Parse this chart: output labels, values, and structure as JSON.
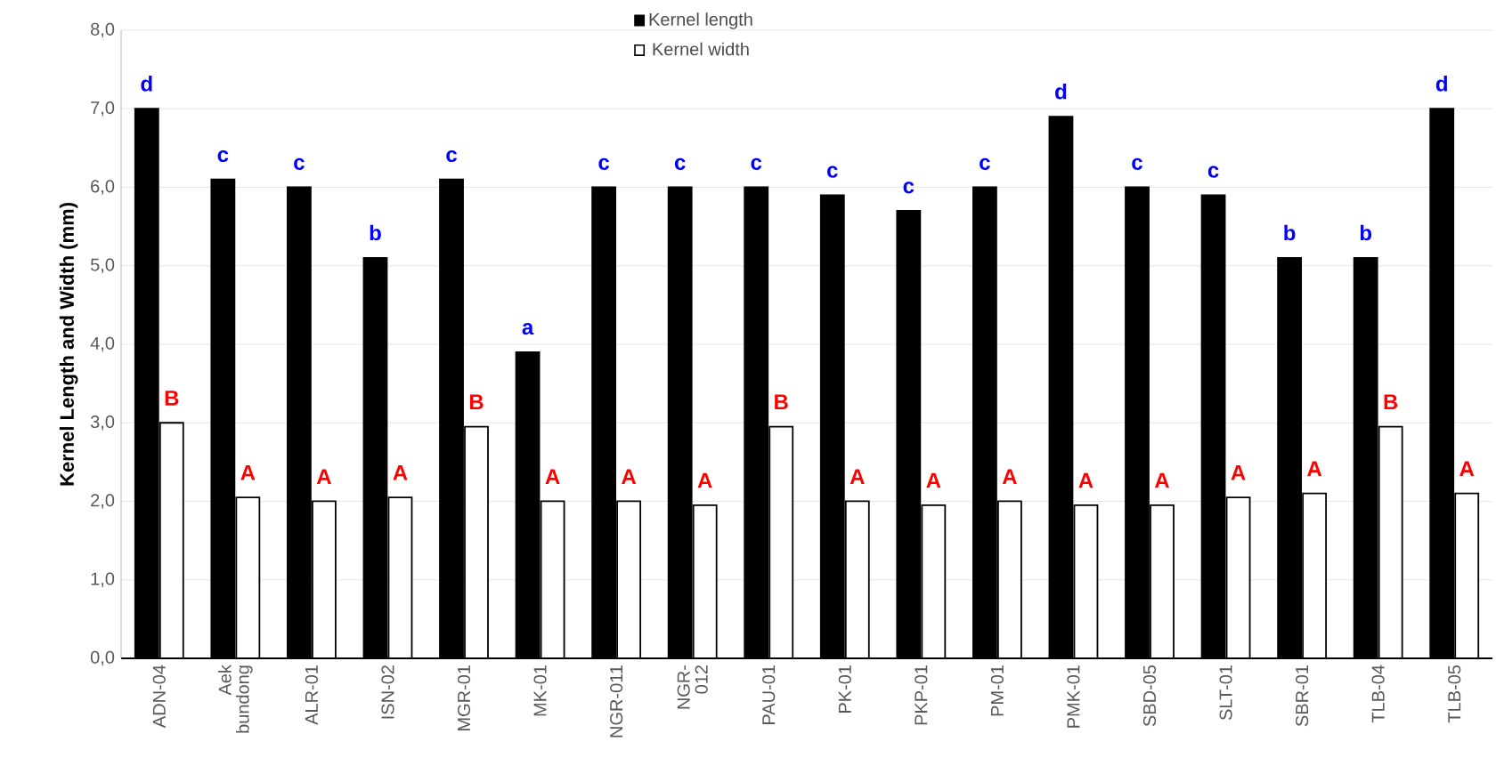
{
  "chart_data": {
    "type": "bar",
    "ylabel": "Kernel Length and Width (mm)",
    "categories": [
      "ADN-04",
      "Aek bundong",
      "ALR-01",
      "ISN-02",
      "MGR-01",
      "MK-01",
      "NGR-011",
      "NGR-012",
      "PAU-01",
      "PK-01",
      "PKP-01",
      "PM-01",
      "PMK-01",
      "SBD-05",
      "SLT-01",
      "SBR-01",
      "TLB-04",
      "TLB-05"
    ],
    "series": [
      {
        "name": "Kernel length",
        "color": "#000000",
        "values": [
          7.0,
          6.1,
          6.0,
          5.1,
          6.1,
          3.9,
          6.0,
          6.0,
          6.0,
          5.9,
          5.7,
          6.0,
          6.9,
          6.0,
          5.9,
          5.1,
          5.1,
          7.0
        ],
        "value_labels": [
          "d",
          "c",
          "c",
          "b",
          "c",
          "a",
          "c",
          "c",
          "c",
          "c",
          "c",
          "c",
          "d",
          "c",
          "c",
          "b",
          "b",
          "d"
        ]
      },
      {
        "name": "Kernel width",
        "color": "#ffffff",
        "values": [
          3.0,
          2.05,
          2.0,
          2.05,
          2.95,
          2.0,
          2.0,
          1.95,
          2.95,
          2.0,
          1.95,
          2.0,
          1.95,
          1.95,
          2.05,
          2.1,
          2.95,
          2.1
        ],
        "value_labels": [
          "B",
          "A",
          "A",
          "A",
          "B",
          "A",
          "A",
          "A",
          "B",
          "A",
          "A",
          "A",
          "A",
          "A",
          "A",
          "A",
          "B",
          "A"
        ]
      }
    ],
    "ylim": [
      0,
      8
    ],
    "yticks": [
      {
        "value": 0,
        "label": "0,0"
      },
      {
        "value": 1,
        "label": "1,0"
      },
      {
        "value": 2,
        "label": "2,0"
      },
      {
        "value": 3,
        "label": "3,0"
      },
      {
        "value": 4,
        "label": "4,0"
      },
      {
        "value": 5,
        "label": "5,0"
      },
      {
        "value": 6,
        "label": "6,0"
      },
      {
        "value": 7,
        "label": "7,0"
      },
      {
        "value": 8,
        "label": "8,0"
      }
    ],
    "grid": "y",
    "legend": "top"
  }
}
